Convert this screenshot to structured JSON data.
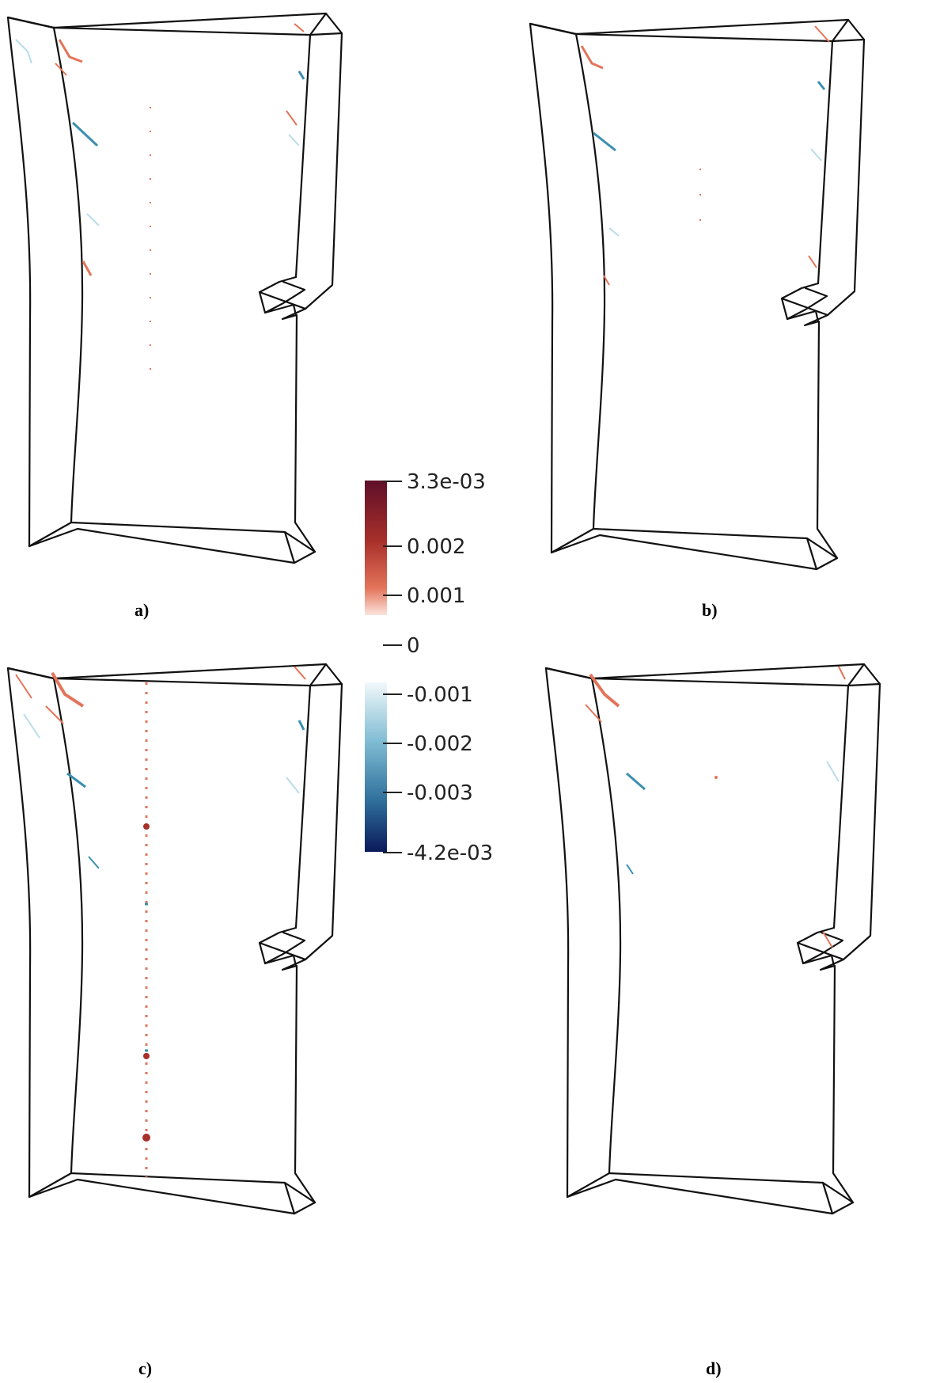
{
  "panels": [
    {
      "id": "a",
      "label": "a)"
    },
    {
      "id": "b",
      "label": "b)"
    },
    {
      "id": "c",
      "label": "c)"
    },
    {
      "id": "d",
      "label": "d)"
    }
  ],
  "colorbar": {
    "max_label": "3.3e-03",
    "min_label": "-4.2e-03",
    "ticks": [
      {
        "value": 0.002,
        "label": "0.002"
      },
      {
        "value": 0.001,
        "label": "0.001"
      },
      {
        "value": 0,
        "label": "0"
      },
      {
        "value": -0.001,
        "label": "-0.001"
      },
      {
        "value": -0.002,
        "label": "-0.002"
      },
      {
        "value": -0.003,
        "label": "-0.003"
      }
    ],
    "colors": {
      "pos_max": "#5e0f2a",
      "pos_mid": "#a8302a",
      "pos_low": "#e3745a",
      "neg_low": "#e6f3f7",
      "neg_mid": "#3a8fb0",
      "neg_max": "#0a1a5a"
    }
  }
}
